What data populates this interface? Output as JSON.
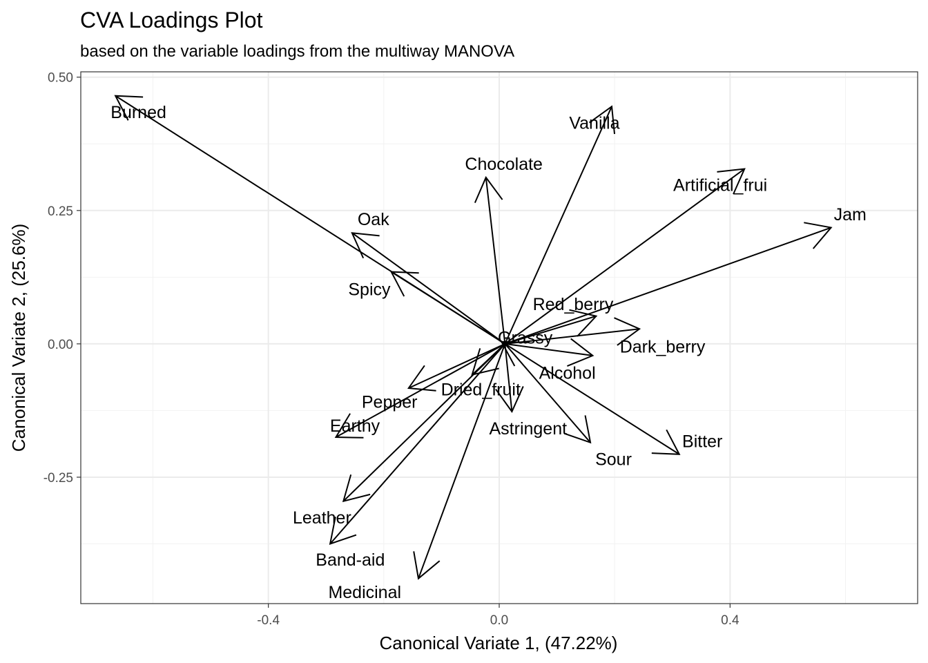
{
  "chart_data": {
    "type": "scatter",
    "title": "CVA Loadings Plot",
    "subtitle": "based on the variable loadings from the multiway MANOVA",
    "xlabel": "Canonical Variate 1, (47.22%)",
    "ylabel": "Canonical Variate 2, (25.6%)",
    "xlim": [
      -0.725,
      0.725
    ],
    "ylim": [
      -0.487,
      0.51
    ],
    "x_ticks": [
      -0.4,
      0.0,
      0.4
    ],
    "x_tick_labels": [
      "-0.4",
      "0.0",
      "0.4"
    ],
    "y_ticks": [
      -0.25,
      0.0,
      0.25,
      0.5
    ],
    "y_tick_labels": [
      "-0.25",
      "0.00",
      "0.25",
      "0.50"
    ],
    "grid": true,
    "origin": [
      0.01,
      0.0
    ],
    "vectors": [
      {
        "name": "Burned",
        "x": -0.665,
        "y": 0.465,
        "lx": -0.625,
        "ly": 0.435
      },
      {
        "name": "Vanilla",
        "x": 0.195,
        "y": 0.445,
        "lx": 0.165,
        "ly": 0.415
      },
      {
        "name": "Chocolate",
        "x": -0.023,
        "y": 0.312,
        "lx": 0.008,
        "ly": 0.338
      },
      {
        "name": "Artificial_frui",
        "x": 0.425,
        "y": 0.328,
        "lx": 0.383,
        "ly": 0.298
      },
      {
        "name": "Jam",
        "x": 0.575,
        "y": 0.218,
        "lx": 0.608,
        "ly": 0.243
      },
      {
        "name": "Oak",
        "x": -0.255,
        "y": 0.208,
        "lx": -0.218,
        "ly": 0.234
      },
      {
        "name": "Spicy",
        "x": -0.187,
        "y": 0.135,
        "lx": -0.225,
        "ly": 0.103
      },
      {
        "name": "Red_berry",
        "x": 0.168,
        "y": 0.052,
        "lx": 0.128,
        "ly": 0.075
      },
      {
        "name": "Dark_berry",
        "x": 0.243,
        "y": 0.028,
        "lx": 0.283,
        "ly": -0.005
      },
      {
        "name": "Grassy",
        "x": 0.004,
        "y": 0.004,
        "lx": 0.045,
        "ly": 0.012
      },
      {
        "name": "Alcohol",
        "x": 0.162,
        "y": -0.022,
        "lx": 0.118,
        "ly": -0.054
      },
      {
        "name": "Dried_fruit",
        "x": -0.047,
        "y": -0.058,
        "lx": -0.032,
        "ly": -0.085
      },
      {
        "name": "Pepper",
        "x": -0.157,
        "y": -0.083,
        "lx": -0.19,
        "ly": -0.108
      },
      {
        "name": "Astringent",
        "x": 0.022,
        "y": -0.127,
        "lx": 0.05,
        "ly": -0.158
      },
      {
        "name": "Earthy",
        "x": -0.283,
        "y": -0.175,
        "lx": -0.25,
        "ly": -0.153
      },
      {
        "name": "Sour",
        "x": 0.158,
        "y": -0.185,
        "lx": 0.198,
        "ly": -0.216
      },
      {
        "name": "Bitter",
        "x": 0.312,
        "y": -0.207,
        "lx": 0.352,
        "ly": -0.182
      },
      {
        "name": "Leather",
        "x": -0.27,
        "y": -0.295,
        "lx": -0.307,
        "ly": -0.325
      },
      {
        "name": "Band-aid",
        "x": -0.293,
        "y": -0.375,
        "lx": -0.258,
        "ly": -0.404
      },
      {
        "name": "Medicinal",
        "x": -0.14,
        "y": -0.44,
        "lx": -0.233,
        "ly": -0.465
      }
    ]
  }
}
